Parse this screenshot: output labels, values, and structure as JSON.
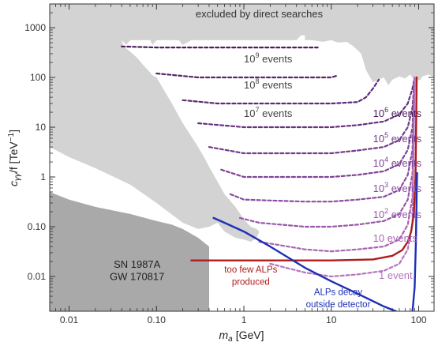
{
  "chart_data": {
    "type": "line",
    "title": "",
    "xlabel_symbol": "m",
    "xlabel_sub": "a",
    "xlabel_unit": "[GeV]",
    "ylabel_symbol": "c",
    "ylabel_sub": "γγ",
    "ylabel_rest": "/f [TeV",
    "ylabel_sup": "−1",
    "ylabel_close": "]",
    "x_scale": "log",
    "y_scale": "log",
    "xlim": [
      0.006,
      150
    ],
    "ylim": [
      0.002,
      3000
    ],
    "x_ticks": [
      {
        "value": 0.01,
        "label": "0.01"
      },
      {
        "value": 0.1,
        "label": "0.10"
      },
      {
        "value": 1,
        "label": "1"
      },
      {
        "value": 10,
        "label": "10"
      },
      {
        "value": 100,
        "label": "100"
      }
    ],
    "y_ticks": [
      {
        "value": 0.01,
        "label": "0.01"
      },
      {
        "value": 0.1,
        "label": "0.10"
      },
      {
        "value": 1,
        "label": "1"
      },
      {
        "value": 10,
        "label": "10"
      },
      {
        "value": 100,
        "label": "100"
      },
      {
        "value": 1000,
        "label": "1000"
      }
    ],
    "grid": false,
    "regions": [
      {
        "label": "excluded by direct searches",
        "color": "#d3d3d3",
        "points": [
          [
            0.006,
            3000
          ],
          [
            150,
            3000
          ],
          [
            150,
            100
          ],
          [
            130,
            115
          ],
          [
            110,
            105
          ],
          [
            105,
            90
          ],
          [
            90,
            85
          ],
          [
            80,
            115
          ],
          [
            70,
            95
          ],
          [
            60,
            105
          ],
          [
            50,
            90
          ],
          [
            45,
            70
          ],
          [
            40,
            100
          ],
          [
            30,
            80
          ],
          [
            25,
            140
          ],
          [
            22,
            300
          ],
          [
            18,
            420
          ],
          [
            15,
            520
          ],
          [
            12,
            500
          ],
          [
            10,
            560
          ],
          [
            8,
            520
          ],
          [
            6,
            560
          ],
          [
            5,
            560
          ],
          [
            5,
            700
          ],
          [
            4.5,
            700
          ],
          [
            4,
            560
          ],
          [
            2,
            560
          ],
          [
            1,
            560
          ],
          [
            0.5,
            560
          ],
          [
            0.3,
            560
          ],
          [
            0.25,
            560
          ],
          [
            0.2,
            450
          ],
          [
            0.18,
            560
          ],
          [
            0.12,
            560
          ],
          [
            0.1,
            560
          ],
          [
            0.09,
            450
          ],
          [
            0.085,
            560
          ],
          [
            0.06,
            560
          ],
          [
            0.05,
            560
          ],
          [
            0.045,
            450
          ],
          [
            0.04,
            560
          ],
          [
            0.042,
            420
          ],
          [
            0.05,
            330
          ],
          [
            0.06,
            250
          ],
          [
            0.07,
            180
          ],
          [
            0.08,
            140
          ],
          [
            0.09,
            110
          ],
          [
            0.1,
            100
          ],
          [
            0.15,
            30
          ],
          [
            0.2,
            12
          ],
          [
            0.3,
            4
          ],
          [
            0.35,
            2.5
          ],
          [
            0.4,
            1.6
          ],
          [
            0.5,
            0.8
          ],
          [
            0.6,
            0.45
          ],
          [
            0.8,
            0.25
          ],
          [
            1,
            0.14
          ],
          [
            1.2,
            0.1
          ],
          [
            1.4,
            0.09
          ],
          [
            1.5,
            0.08
          ],
          [
            1.4,
            0.06
          ],
          [
            1.2,
            0.05
          ],
          [
            1,
            0.055
          ],
          [
            0.8,
            0.06
          ],
          [
            0.6,
            0.08
          ],
          [
            0.5,
            0.12
          ],
          [
            0.4,
            0.1
          ],
          [
            0.3,
            0.09
          ],
          [
            0.2,
            0.12
          ],
          [
            0.1,
            0.3
          ],
          [
            0.05,
            0.7
          ],
          [
            0.02,
            1.5
          ],
          [
            0.01,
            2.5
          ],
          [
            0.006,
            4
          ]
        ]
      },
      {
        "label": "SN 1987A\nGW 170817",
        "color": "#a9a9a9",
        "points": [
          [
            0.006,
            0.5
          ],
          [
            0.01,
            0.35
          ],
          [
            0.02,
            0.25
          ],
          [
            0.05,
            0.18
          ],
          [
            0.1,
            0.13
          ],
          [
            0.15,
            0.11
          ],
          [
            0.2,
            0.09
          ],
          [
            0.3,
            0.06
          ],
          [
            0.4,
            0.04
          ],
          [
            0.4,
            0.002
          ],
          [
            0.006,
            0.002
          ]
        ]
      }
    ],
    "series": [
      {
        "label": "10⁹ events",
        "color": "#4b1e5a",
        "dash": true,
        "points": [
          [
            0.04,
            420
          ],
          [
            0.1,
            400
          ],
          [
            1,
            400
          ],
          [
            3,
            400
          ],
          [
            5,
            400
          ],
          [
            7,
            400
          ]
        ]
      },
      {
        "label": "10⁸ events",
        "color": "#55246a",
        "dash": true,
        "points": [
          [
            0.1,
            120
          ],
          [
            0.3,
            100
          ],
          [
            1,
            100
          ],
          [
            3,
            100
          ],
          [
            10,
            100
          ],
          [
            12,
            110
          ]
        ]
      },
      {
        "label": "10⁷ events",
        "color": "#5e2a78",
        "dash": true,
        "points": [
          [
            0.2,
            35
          ],
          [
            0.5,
            30
          ],
          [
            1,
            30
          ],
          [
            3,
            30
          ],
          [
            10,
            30
          ],
          [
            20,
            32
          ],
          [
            25,
            40
          ],
          [
            30,
            60
          ],
          [
            35,
            90
          ]
        ]
      },
      {
        "label": "10⁶ events",
        "color": "#673080",
        "dash": true,
        "points": [
          [
            0.3,
            12
          ],
          [
            1,
            10
          ],
          [
            5,
            10
          ],
          [
            10,
            10
          ],
          [
            20,
            11
          ],
          [
            40,
            13
          ],
          [
            60,
            18
          ],
          [
            75,
            30
          ],
          [
            85,
            60
          ],
          [
            90,
            100
          ]
        ]
      },
      {
        "label": "10⁵ events",
        "color": "#733a8c",
        "dash": true,
        "points": [
          [
            0.4,
            4
          ],
          [
            1,
            3
          ],
          [
            5,
            3
          ],
          [
            10,
            3
          ],
          [
            20,
            3.4
          ],
          [
            40,
            4
          ],
          [
            60,
            5.5
          ],
          [
            75,
            10
          ],
          [
            85,
            25
          ],
          [
            90,
            100
          ]
        ]
      },
      {
        "label": "10⁴ events",
        "color": "#7f4396",
        "dash": true,
        "points": [
          [
            0.55,
            1.4
          ],
          [
            1,
            1
          ],
          [
            5,
            1
          ],
          [
            10,
            1
          ],
          [
            20,
            1.1
          ],
          [
            40,
            1.3
          ],
          [
            60,
            1.8
          ],
          [
            75,
            3.5
          ],
          [
            85,
            10
          ],
          [
            90,
            100
          ]
        ]
      },
      {
        "label": "10³ events",
        "color": "#8b4da0",
        "dash": true,
        "points": [
          [
            0.7,
            0.45
          ],
          [
            1,
            0.35
          ],
          [
            5,
            0.32
          ],
          [
            10,
            0.32
          ],
          [
            20,
            0.35
          ],
          [
            40,
            0.4
          ],
          [
            60,
            0.55
          ],
          [
            75,
            1.1
          ],
          [
            85,
            3.5
          ],
          [
            90,
            100
          ]
        ]
      },
      {
        "label": "10² events",
        "color": "#9957aa",
        "dash": true,
        "points": [
          [
            0.9,
            0.15
          ],
          [
            1.5,
            0.12
          ],
          [
            5,
            0.1
          ],
          [
            10,
            0.1
          ],
          [
            20,
            0.11
          ],
          [
            40,
            0.13
          ],
          [
            60,
            0.18
          ],
          [
            75,
            0.35
          ],
          [
            85,
            1.2
          ],
          [
            90,
            100
          ]
        ]
      },
      {
        "label": "10 events",
        "color": "#a864b3",
        "dash": true,
        "points": [
          [
            1.5,
            0.05
          ],
          [
            5,
            0.035
          ],
          [
            10,
            0.032
          ],
          [
            20,
            0.035
          ],
          [
            40,
            0.04
          ],
          [
            60,
            0.055
          ],
          [
            75,
            0.11
          ],
          [
            85,
            0.4
          ],
          [
            90,
            100
          ]
        ]
      },
      {
        "label": "1 event",
        "color": "#b675bf",
        "dash": true,
        "points": [
          [
            2,
            0.018
          ],
          [
            5,
            0.012
          ],
          [
            10,
            0.01
          ],
          [
            20,
            0.011
          ],
          [
            40,
            0.013
          ],
          [
            60,
            0.018
          ],
          [
            75,
            0.035
          ],
          [
            85,
            0.12
          ],
          [
            90,
            100
          ]
        ]
      },
      {
        "label": "too few ALPs\nproduced",
        "color": "#b01c1c",
        "dash": false,
        "points": [
          [
            0.25,
            0.021
          ],
          [
            1,
            0.021
          ],
          [
            10,
            0.021
          ],
          [
            30,
            0.022
          ],
          [
            50,
            0.026
          ],
          [
            65,
            0.034
          ],
          [
            75,
            0.05
          ],
          [
            82,
            0.08
          ],
          [
            88,
            0.18
          ],
          [
            92,
            1
          ],
          [
            95,
            100
          ]
        ]
      },
      {
        "label": "ALPs decay\noutside detector",
        "color": "#1d2fb5",
        "dash": false,
        "points": [
          [
            0.45,
            0.15
          ],
          [
            0.6,
            0.12
          ],
          [
            1,
            0.08
          ],
          [
            2,
            0.04
          ],
          [
            5,
            0.015
          ],
          [
            10,
            0.008
          ],
          [
            20,
            0.0045
          ],
          [
            40,
            0.0025
          ],
          [
            55,
            0.002
          ]
        ]
      },
      {
        "label": "",
        "color": "#1d2fb5",
        "dash": false,
        "points": [
          [
            85,
            0.002
          ],
          [
            90,
            0.006
          ],
          [
            93,
            0.05
          ],
          [
            95,
            0.5
          ],
          [
            96,
            1.2
          ]
        ]
      }
    ],
    "annotations": [
      {
        "text": "excluded by direct searches",
        "x": 1.5,
        "y": 1600,
        "color": "#333333"
      },
      {
        "text": "10",
        "sup": "9",
        "rest": " events",
        "x": 1.0,
        "y": 200,
        "color": "#444444"
      },
      {
        "text": "10",
        "sup": "8",
        "rest": " events",
        "x": 1.0,
        "y": 60,
        "color": "#444444"
      },
      {
        "text": "10",
        "sup": "7",
        "rest": " events",
        "x": 1.0,
        "y": 16,
        "color": "#444444"
      },
      {
        "text": "10",
        "sup": "6",
        "rest": " events",
        "x": 30,
        "y": 16,
        "color": "#4b1e5a"
      },
      {
        "text": "10",
        "sup": "5",
        "rest": " events",
        "x": 30,
        "y": 5,
        "color": "#733a8c"
      },
      {
        "text": "10",
        "sup": "4",
        "rest": " events",
        "x": 30,
        "y": 1.6,
        "color": "#7f4396"
      },
      {
        "text": "10",
        "sup": "3",
        "rest": " events",
        "x": 30,
        "y": 0.5,
        "color": "#8b4da0"
      },
      {
        "text": "10",
        "sup": "2",
        "rest": " events",
        "x": 30,
        "y": 0.15,
        "color": "#9957aa"
      },
      {
        "text": "10 events",
        "x": 30,
        "y": 0.05,
        "color": "#a864b3"
      },
      {
        "text": "1 event",
        "x": 35,
        "y": 0.009,
        "color": "#b675bf"
      },
      {
        "text": "too few ALPs",
        "x": 1.2,
        "y": 0.012,
        "color": "#b01c1c"
      },
      {
        "text": "produced",
        "x": 1.2,
        "y": 0.0068,
        "color": "#b01c1c"
      },
      {
        "text": "ALPs decay",
        "x": 12,
        "y": 0.0042,
        "color": "#1d2fb5"
      },
      {
        "text": "outside detector",
        "x": 12,
        "y": 0.0024,
        "color": "#1d2fb5"
      },
      {
        "text": "SN 1987A",
        "x": 0.06,
        "y": 0.015,
        "color": "#222222"
      },
      {
        "text": "GW 170817",
        "x": 0.06,
        "y": 0.0085,
        "color": "#222222"
      }
    ]
  }
}
